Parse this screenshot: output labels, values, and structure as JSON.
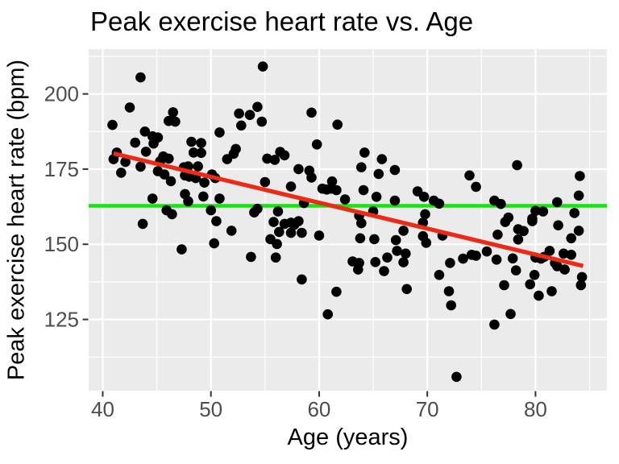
{
  "chart_data": {
    "type": "scatter",
    "title": "Peak exercise heart rate vs. Age",
    "xlabel": "Age (years)",
    "ylabel": "Peak exercise heart rate (bpm)",
    "xlim": [
      38.7,
      86.6
    ],
    "ylim": [
      101.3,
      214.9
    ],
    "x_ticks": [
      40,
      50,
      60,
      70,
      80
    ],
    "x_minor_ticks": [
      45,
      55,
      65,
      75,
      85
    ],
    "y_ticks": [
      125,
      150,
      175,
      200
    ],
    "y_minor_ticks": [
      112.5,
      137.5,
      162.5,
      187.5,
      212.5
    ],
    "legend": "none",
    "grid": "white major and minor gridlines on gray panel",
    "colors": {
      "panel_background": "#EBEBEB",
      "gridline": "#FFFFFF",
      "point": "#000000",
      "trend_line": "#ED2A16",
      "mean_line": "#12E60A",
      "tick_label": "#4D4D4D",
      "tick_mark": "#333333",
      "text": "#000000"
    },
    "trend_line": {
      "kind": "linear-fit",
      "x1": 41.0,
      "y1": 180.2,
      "x2": 84.4,
      "y2": 142.8
    },
    "mean_line": {
      "kind": "horizontal",
      "y": 162.8
    },
    "points": [
      [
        43.5,
        205.5
      ],
      [
        42.5,
        195.5
      ],
      [
        40.9,
        189.7
      ],
      [
        46.5,
        193.9
      ],
      [
        46.7,
        190.8
      ],
      [
        46.1,
        191.0
      ],
      [
        43.9,
        187.5
      ],
      [
        43.0,
        183.8
      ],
      [
        44.6,
        185.9
      ],
      [
        45.1,
        185.5
      ],
      [
        44.7,
        183.5
      ],
      [
        44.0,
        180.8
      ],
      [
        41.3,
        180.5
      ],
      [
        41.0,
        178.3
      ],
      [
        42.1,
        177.4
      ],
      [
        41.7,
        173.8
      ],
      [
        43.5,
        175.8
      ],
      [
        45.6,
        179.2
      ],
      [
        46.1,
        178.5
      ],
      [
        45.3,
        177.6
      ],
      [
        45.1,
        174.3
      ],
      [
        45.7,
        173.2
      ],
      [
        46.3,
        171.0
      ],
      [
        44.6,
        165.2
      ],
      [
        47.5,
        175.6
      ],
      [
        47.9,
        175.9
      ],
      [
        48.2,
        184.1
      ],
      [
        49.1,
        183.7
      ],
      [
        48.4,
        180.5
      ],
      [
        49.1,
        180.4
      ],
      [
        47.6,
        172.9
      ],
      [
        48.0,
        172.5
      ],
      [
        48.6,
        172.0
      ],
      [
        48.8,
        175.9
      ],
      [
        49.4,
        170.5
      ],
      [
        49.3,
        165.9
      ],
      [
        47.6,
        166.7
      ],
      [
        47.9,
        164.3
      ],
      [
        50.1,
        173.2
      ],
      [
        50.4,
        172.0
      ],
      [
        50.8,
        187.2
      ],
      [
        51.5,
        178.3
      ],
      [
        52.1,
        180.1
      ],
      [
        52.3,
        181.7
      ],
      [
        52.6,
        193.5
      ],
      [
        52.8,
        189.5
      ],
      [
        53.6,
        193.0
      ],
      [
        54.3,
        195.7
      ],
      [
        54.8,
        209.1
      ],
      [
        54.7,
        190.8
      ],
      [
        54.0,
        160.6
      ],
      [
        45.9,
        161.3
      ],
      [
        46.4,
        160.0
      ],
      [
        50.0,
        161.3
      ],
      [
        54.3,
        161.8
      ],
      [
        50.8,
        165.2
      ],
      [
        59.3,
        193.8
      ],
      [
        61.7,
        189.8
      ],
      [
        59.8,
        183.2
      ],
      [
        56.4,
        180.7
      ],
      [
        56.8,
        179.6
      ],
      [
        55.2,
        178.5
      ],
      [
        55.9,
        178.1
      ],
      [
        58.1,
        175.0
      ],
      [
        59.1,
        174.5
      ],
      [
        59.3,
        172.2
      ],
      [
        64.2,
        180.5
      ],
      [
        63.9,
        175.6
      ],
      [
        65.8,
        178.3
      ],
      [
        65.5,
        173.4
      ],
      [
        67.0,
        174.7
      ],
      [
        55.0,
        170.7
      ],
      [
        57.4,
        169.2
      ],
      [
        60.3,
        168.5
      ],
      [
        60.7,
        168.2
      ],
      [
        61.1,
        168.5
      ],
      [
        61.6,
        168.0
      ],
      [
        61.2,
        170.9
      ],
      [
        62.4,
        164.9
      ],
      [
        64.1,
        168.0
      ],
      [
        65.3,
        165.8
      ],
      [
        67.0,
        164.5
      ],
      [
        69.1,
        167.6
      ],
      [
        69.7,
        165.8
      ],
      [
        70.6,
        164.5
      ],
      [
        71.1,
        163.5
      ],
      [
        63.7,
        159.5
      ],
      [
        65.0,
        160.9
      ],
      [
        56.2,
        160.9
      ],
      [
        58.6,
        163.7
      ],
      [
        69.8,
        160.0
      ],
      [
        78.3,
        176.3
      ],
      [
        73.9,
        172.9
      ],
      [
        74.5,
        169.1
      ],
      [
        84.1,
        172.7
      ],
      [
        84.0,
        166.2
      ],
      [
        76.2,
        164.5
      ],
      [
        76.8,
        163.4
      ],
      [
        82.0,
        164.0
      ],
      [
        80.0,
        161.1
      ],
      [
        80.7,
        160.9
      ],
      [
        83.6,
        160.4
      ],
      [
        79.7,
        158.5
      ],
      [
        77.5,
        158.9
      ],
      [
        43.7,
        156.8
      ],
      [
        50.5,
        157.7
      ],
      [
        51.9,
        154.5
      ],
      [
        50.3,
        150.3
      ],
      [
        47.3,
        148.3
      ],
      [
        53.7,
        145.8
      ],
      [
        55.8,
        157.4
      ],
      [
        56.8,
        156.8
      ],
      [
        57.4,
        157.2
      ],
      [
        57.7,
        156.5
      ],
      [
        58.1,
        157.7
      ],
      [
        56.3,
        154.1
      ],
      [
        57.4,
        153.8
      ],
      [
        58.4,
        153.8
      ],
      [
        55.5,
        151.7
      ],
      [
        56.1,
        150.1
      ],
      [
        60.0,
        152.9
      ],
      [
        56.0,
        145.6
      ],
      [
        58.4,
        138.3
      ],
      [
        63.9,
        157.0
      ],
      [
        63.8,
        152.0
      ],
      [
        65.1,
        151.7
      ],
      [
        63.7,
        143.8
      ],
      [
        63.1,
        144.3
      ],
      [
        63.6,
        141.6
      ],
      [
        65.2,
        144.1
      ],
      [
        66.0,
        141.1
      ],
      [
        66.3,
        145.6
      ],
      [
        67.1,
        151.4
      ],
      [
        67.2,
        147.8
      ],
      [
        67.8,
        154.5
      ],
      [
        68.0,
        146.9
      ],
      [
        67.8,
        144.0
      ],
      [
        69.6,
        157.2
      ],
      [
        69.6,
        152.7
      ],
      [
        69.9,
        150.5
      ],
      [
        71.1,
        139.8
      ],
      [
        68.1,
        135.1
      ],
      [
        61.6,
        134.2
      ],
      [
        60.8,
        126.7
      ],
      [
        77.2,
        157.4
      ],
      [
        79.7,
        157.7
      ],
      [
        82.1,
        156.3
      ],
      [
        78.4,
        155.0
      ],
      [
        78.9,
        154.4
      ],
      [
        84.0,
        154.5
      ],
      [
        76.5,
        153.2
      ],
      [
        78.4,
        151.6
      ],
      [
        83.3,
        152.0
      ],
      [
        71.4,
        152.9
      ],
      [
        72.1,
        143.8
      ],
      [
        73.3,
        145.2
      ],
      [
        74.1,
        146.5
      ],
      [
        74.5,
        146.2
      ],
      [
        75.5,
        147.6
      ],
      [
        76.4,
        144.9
      ],
      [
        77.9,
        145.3
      ],
      [
        80.0,
        145.6
      ],
      [
        80.5,
        145.2
      ],
      [
        80.8,
        145.8
      ],
      [
        81.3,
        147.8
      ],
      [
        81.8,
        143.8
      ],
      [
        82.0,
        142.7
      ],
      [
        82.6,
        146.9
      ],
      [
        82.7,
        141.6
      ],
      [
        83.3,
        146.5
      ],
      [
        78.2,
        141.3
      ],
      [
        79.9,
        139.8
      ],
      [
        79.5,
        136.7
      ],
      [
        77.1,
        136.4
      ],
      [
        81.5,
        134.4
      ],
      [
        80.3,
        132.9
      ],
      [
        84.3,
        139.1
      ],
      [
        84.2,
        136.4
      ],
      [
        72.0,
        134.4
      ],
      [
        72.2,
        129.7
      ],
      [
        77.7,
        126.8
      ],
      [
        76.2,
        123.3
      ],
      [
        72.7,
        105.9
      ]
    ]
  }
}
